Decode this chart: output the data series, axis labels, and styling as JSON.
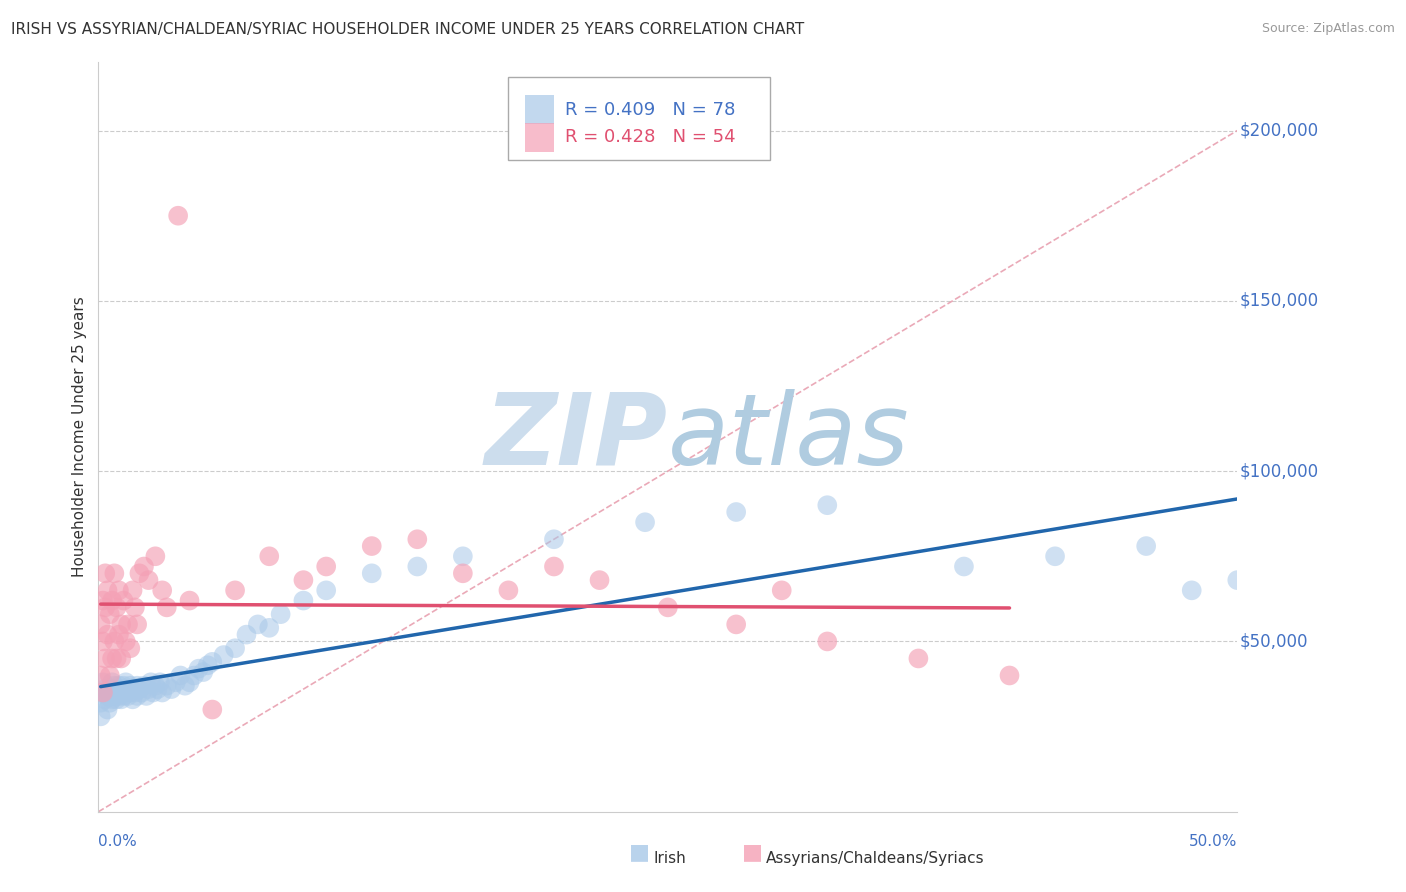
{
  "title": "IRISH VS ASSYRIAN/CHALDEAN/SYRIAC HOUSEHOLDER INCOME UNDER 25 YEARS CORRELATION CHART",
  "source": "Source: ZipAtlas.com",
  "ylabel": "Householder Income Under 25 years",
  "xlim": [
    0.0,
    0.5
  ],
  "ylim": [
    0,
    220000
  ],
  "yticks": [
    0,
    50000,
    100000,
    150000,
    200000
  ],
  "ytick_labels": [
    "",
    "$50,000",
    "$100,000",
    "$150,000",
    "$200,000"
  ],
  "irish_color": "#a8c8e8",
  "irish_line_color": "#2166ac",
  "assyr_color": "#f4a0b5",
  "assyr_line_color": "#e05070",
  "diag_line_color": "#e8a0b0",
  "watermark_zip": "ZIP",
  "watermark_atlas": "atlas",
  "watermark_color_zip": "#d0e4f0",
  "watermark_color_atlas": "#b8d0e8",
  "background_color": "#ffffff",
  "grid_color": "#cccccc",
  "irish_x": [
    0.001,
    0.001,
    0.002,
    0.002,
    0.003,
    0.003,
    0.004,
    0.004,
    0.005,
    0.005,
    0.006,
    0.006,
    0.006,
    0.007,
    0.007,
    0.007,
    0.008,
    0.008,
    0.009,
    0.009,
    0.01,
    0.01,
    0.01,
    0.011,
    0.011,
    0.012,
    0.012,
    0.013,
    0.013,
    0.014,
    0.014,
    0.015,
    0.015,
    0.016,
    0.017,
    0.017,
    0.018,
    0.019,
    0.02,
    0.021,
    0.022,
    0.023,
    0.024,
    0.025,
    0.026,
    0.027,
    0.028,
    0.03,
    0.032,
    0.034,
    0.036,
    0.038,
    0.04,
    0.042,
    0.044,
    0.046,
    0.048,
    0.05,
    0.055,
    0.06,
    0.065,
    0.07,
    0.075,
    0.08,
    0.09,
    0.1,
    0.12,
    0.14,
    0.16,
    0.2,
    0.24,
    0.28,
    0.32,
    0.38,
    0.42,
    0.46,
    0.48,
    0.5
  ],
  "irish_y": [
    28000,
    32000,
    35000,
    38000,
    33000,
    36000,
    30000,
    34000,
    32000,
    35000,
    33000,
    36000,
    38000,
    34000,
    37000,
    35000,
    33000,
    36000,
    34000,
    37000,
    35000,
    33000,
    36000,
    34000,
    37000,
    35000,
    38000,
    34000,
    36000,
    35000,
    37000,
    33000,
    36000,
    35000,
    34000,
    37000,
    36000,
    35000,
    37000,
    34000,
    36000,
    38000,
    35000,
    37000,
    36000,
    38000,
    35000,
    37000,
    36000,
    38000,
    40000,
    37000,
    38000,
    40000,
    42000,
    41000,
    43000,
    44000,
    46000,
    48000,
    52000,
    55000,
    54000,
    58000,
    62000,
    65000,
    70000,
    72000,
    75000,
    80000,
    85000,
    88000,
    90000,
    72000,
    75000,
    78000,
    65000,
    68000
  ],
  "assyr_x": [
    0.001,
    0.001,
    0.002,
    0.002,
    0.002,
    0.003,
    0.003,
    0.003,
    0.004,
    0.004,
    0.005,
    0.005,
    0.006,
    0.006,
    0.007,
    0.007,
    0.008,
    0.008,
    0.009,
    0.009,
    0.01,
    0.01,
    0.011,
    0.012,
    0.013,
    0.014,
    0.015,
    0.016,
    0.017,
    0.018,
    0.02,
    0.022,
    0.025,
    0.028,
    0.03,
    0.035,
    0.04,
    0.05,
    0.06,
    0.075,
    0.09,
    0.1,
    0.12,
    0.14,
    0.16,
    0.18,
    0.2,
    0.22,
    0.25,
    0.28,
    0.3,
    0.32,
    0.36,
    0.4
  ],
  "assyr_y": [
    40000,
    55000,
    35000,
    50000,
    62000,
    45000,
    60000,
    70000,
    52000,
    65000,
    40000,
    58000,
    45000,
    62000,
    50000,
    70000,
    45000,
    60000,
    52000,
    65000,
    45000,
    55000,
    62000,
    50000,
    55000,
    48000,
    65000,
    60000,
    55000,
    70000,
    72000,
    68000,
    75000,
    65000,
    60000,
    175000,
    62000,
    30000,
    65000,
    75000,
    68000,
    72000,
    78000,
    80000,
    70000,
    65000,
    72000,
    68000,
    60000,
    55000,
    65000,
    50000,
    45000,
    40000
  ]
}
